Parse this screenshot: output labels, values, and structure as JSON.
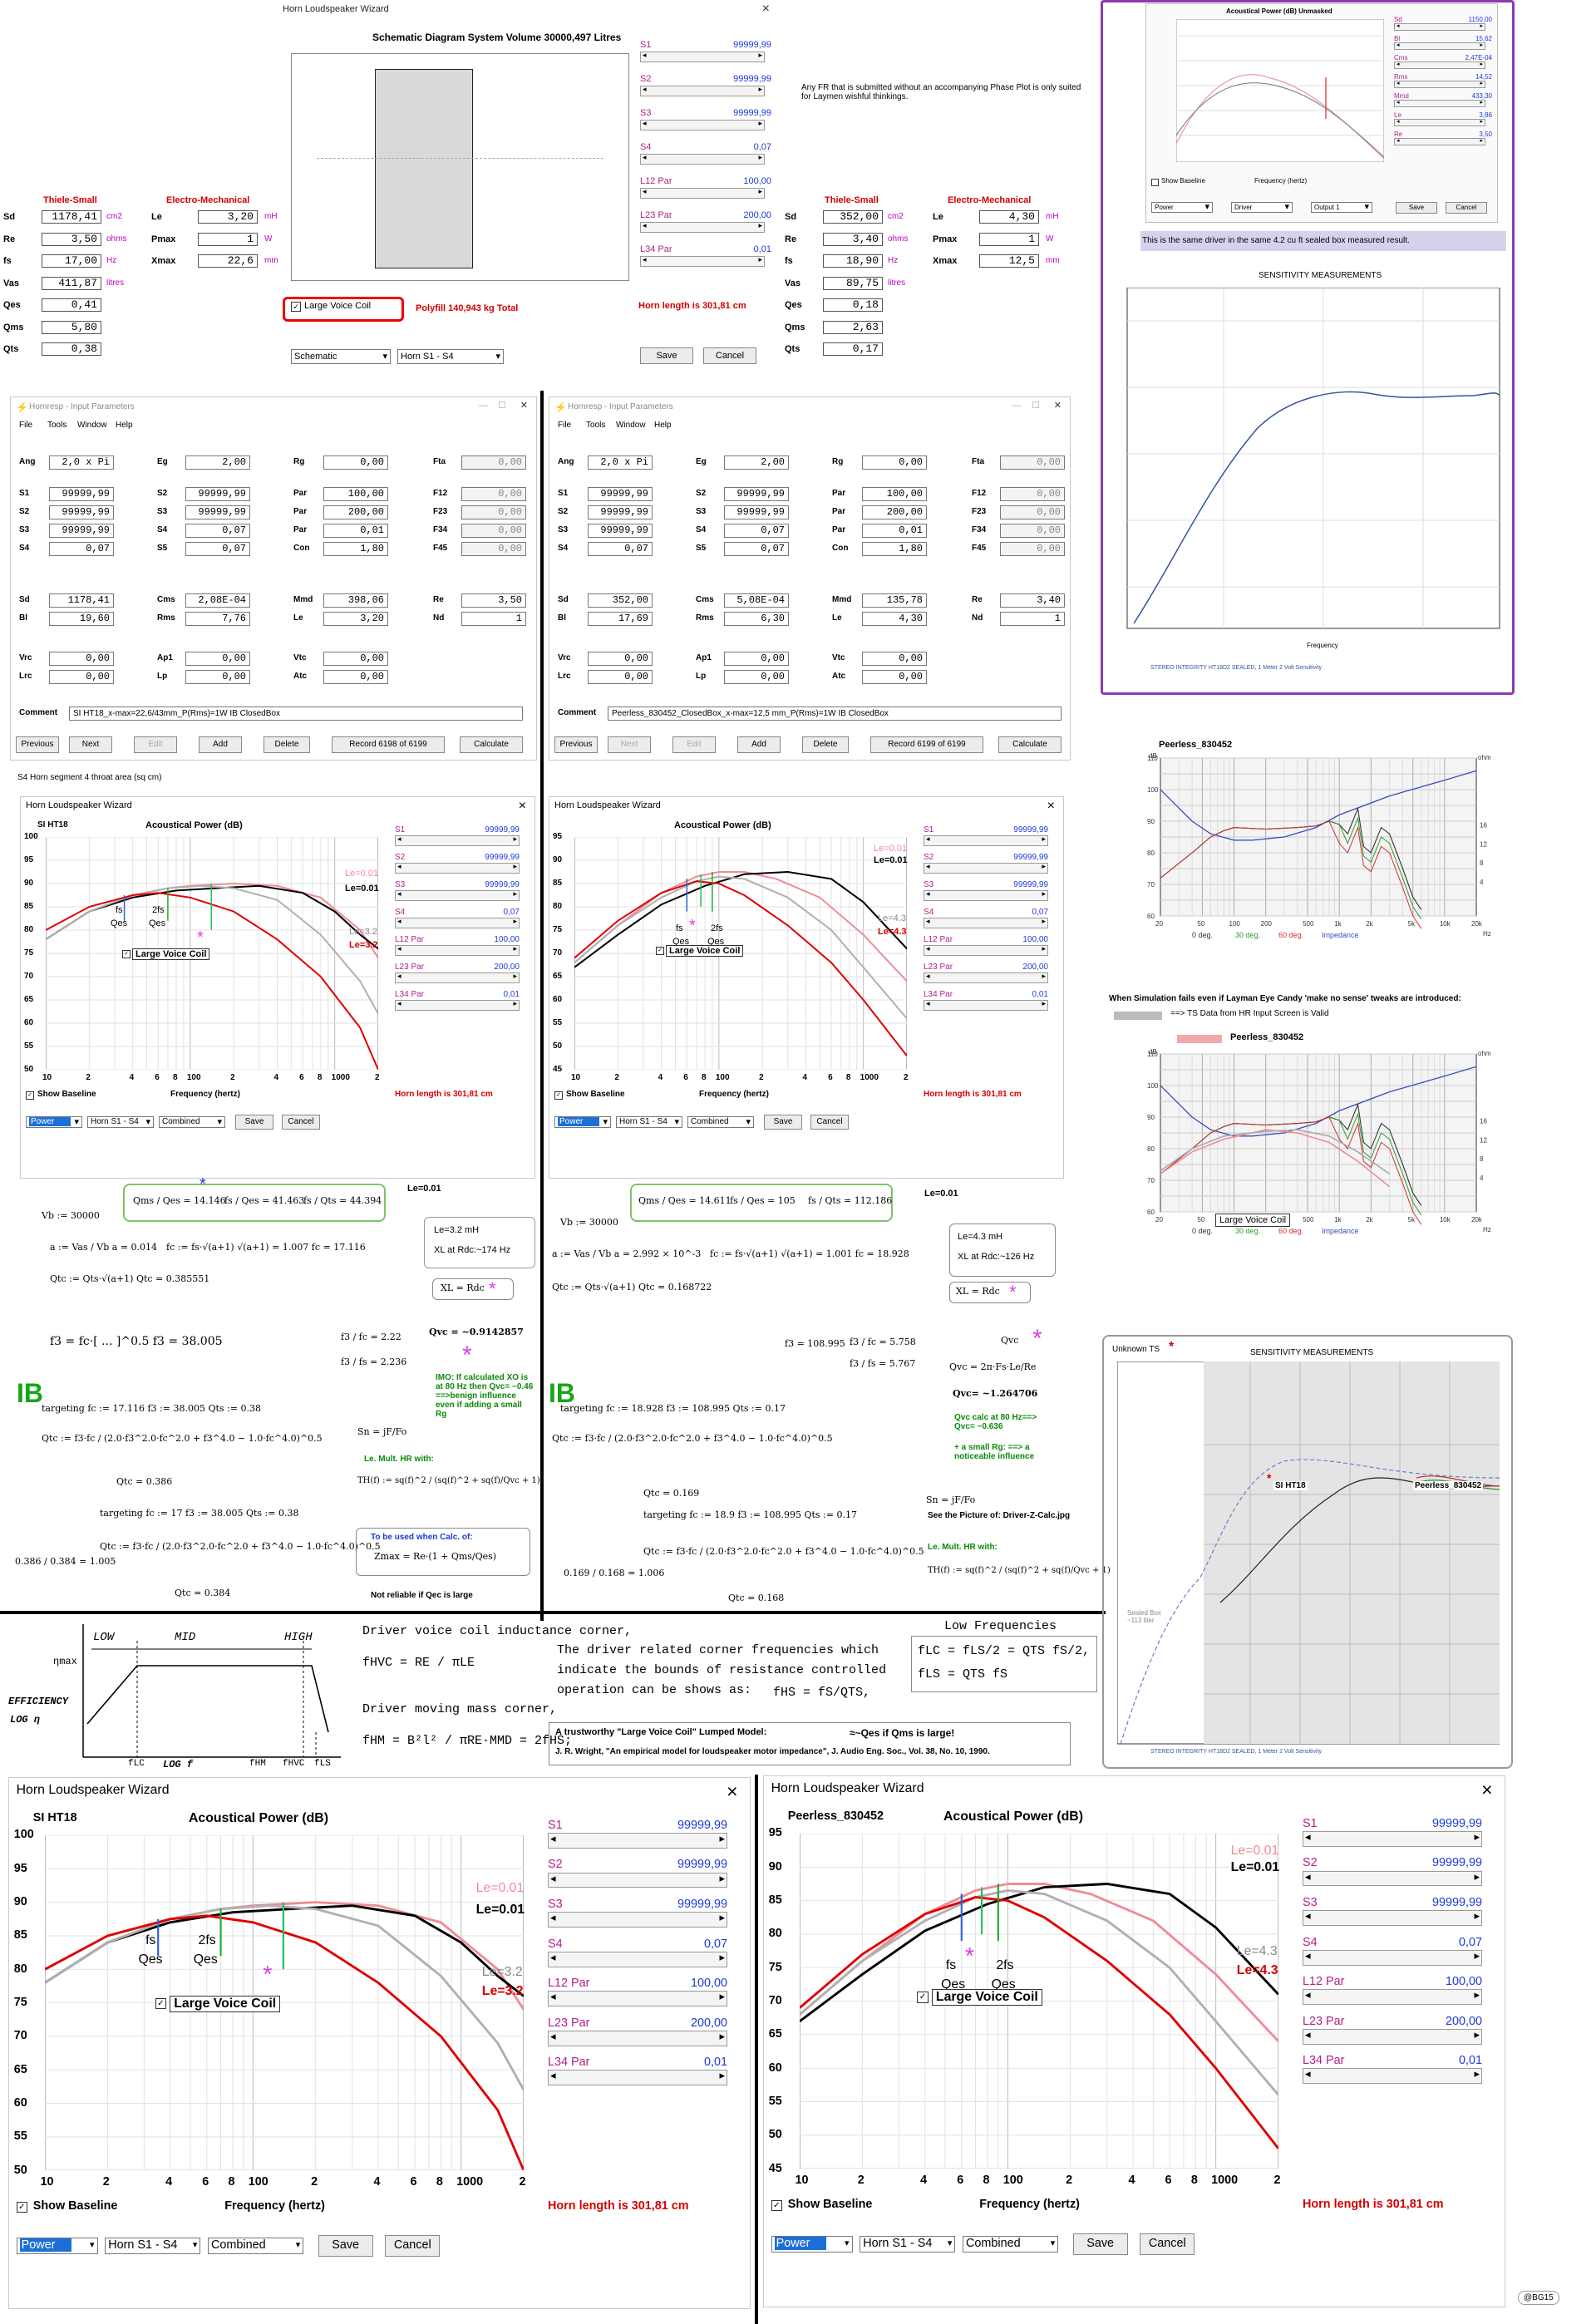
{
  "top_wizard": {
    "title": "Horn Loudspeaker Wizard",
    "schematic_title": "Schematic Diagram   System Volume 30000,497 Litres",
    "sliders": [
      {
        "label": "S1",
        "value": "99999,99"
      },
      {
        "label": "S2",
        "value": "99999,99"
      },
      {
        "label": "S3",
        "value": "99999,99"
      },
      {
        "label": "S4",
        "value": "0,07"
      },
      {
        "label": "L12 Par",
        "value": "100,00"
      },
      {
        "label": "L23 Par",
        "value": "200,00"
      },
      {
        "label": "L34 Par",
        "value": "0,01"
      }
    ],
    "large_voice_coil": "Large Voice Coil",
    "polyfill": "Polyfill   140,943 kg   Total",
    "horn_length": "Horn length is 301,81 cm",
    "combo_left": "Schematic",
    "combo_mid": "Horn S1 - S4",
    "save": "Save",
    "cancel": "Cancel",
    "note": "Any FR that is submitted without an accompanying Phase Plot is only suited for Laymen wishful thinkings."
  },
  "ts_left": {
    "head1": "Thiele-Small",
    "head2": "Electro-Mechanical",
    "rows": [
      {
        "name": "Sd",
        "value": "1178,41",
        "unit": "cm2"
      },
      {
        "name": "Re",
        "value": "3,50",
        "unit": "ohms"
      },
      {
        "name": "fs",
        "value": "17,00",
        "unit": "Hz"
      },
      {
        "name": "Vas",
        "value": "411,87",
        "unit": "litres"
      },
      {
        "name": "Qes",
        "value": "0,41",
        "unit": ""
      },
      {
        "name": "Qms",
        "value": "5,80",
        "unit": ""
      },
      {
        "name": "Qts",
        "value": "0,38",
        "unit": ""
      }
    ],
    "em": [
      {
        "name": "Le",
        "value": "3,20",
        "unit": "mH"
      },
      {
        "name": "Pmax",
        "value": "1",
        "unit": "W"
      },
      {
        "name": "Xmax",
        "value": "22,6",
        "unit": "mm"
      }
    ]
  },
  "ts_right": {
    "head1": "Thiele-Small",
    "head2": "Electro-Mechanical",
    "rows": [
      {
        "name": "Sd",
        "value": "352,00",
        "unit": "cm2"
      },
      {
        "name": "Re",
        "value": "3,40",
        "unit": "ohms"
      },
      {
        "name": "fs",
        "value": "18,90",
        "unit": "Hz"
      },
      {
        "name": "Vas",
        "value": "89,75",
        "unit": "litres"
      },
      {
        "name": "Qes",
        "value": "0,18",
        "unit": ""
      },
      {
        "name": "Qms",
        "value": "2,63",
        "unit": ""
      },
      {
        "name": "Qts",
        "value": "0,17",
        "unit": ""
      }
    ],
    "em": [
      {
        "name": "Le",
        "value": "4,30",
        "unit": "mH"
      },
      {
        "name": "Pmax",
        "value": "1",
        "unit": "W"
      },
      {
        "name": "Xmax",
        "value": "12,5",
        "unit": "mm"
      }
    ]
  },
  "hornresp_left": {
    "title": "Hornresp - Input Parameters",
    "menu": [
      "File",
      "Tools",
      "Window",
      "Help"
    ],
    "rows": [
      [
        [
          "Ang",
          "2,0 x Pi"
        ],
        [
          "Eg",
          "2,00"
        ],
        [
          "Rg",
          "0,00"
        ],
        [
          "Fta",
          "0,00"
        ]
      ],
      [
        [
          "S1",
          "99999,99"
        ],
        [
          "S2",
          "99999,99"
        ],
        [
          "Par",
          "100,00"
        ],
        [
          "F12",
          "0,00"
        ]
      ],
      [
        [
          "S2",
          "99999,99"
        ],
        [
          "S3",
          "99999,99"
        ],
        [
          "Par",
          "200,00"
        ],
        [
          "F23",
          "0,00"
        ]
      ],
      [
        [
          "S3",
          "99999,99"
        ],
        [
          "S4",
          "0,07"
        ],
        [
          "Par",
          "0,01"
        ],
        [
          "F34",
          "0,00"
        ]
      ],
      [
        [
          "S4",
          "0,07"
        ],
        [
          "S5",
          "0,07"
        ],
        [
          "Con",
          "1,80"
        ],
        [
          "F45",
          "0,00"
        ]
      ],
      [
        [
          "Sd",
          "1178,41"
        ],
        [
          "Cms",
          "2,08E-04"
        ],
        [
          "Mmd",
          "398,06"
        ],
        [
          "Re",
          "3,50"
        ]
      ],
      [
        [
          "Bl",
          "19,60"
        ],
        [
          "Rms",
          "7,76"
        ],
        [
          "Le",
          "3,20"
        ],
        [
          "Nd",
          "1"
        ]
      ],
      [
        [
          "Vrc",
          "0,00"
        ],
        [
          "Ap1",
          "0,00"
        ],
        [
          "Vtc",
          "0,00"
        ]
      ],
      [
        [
          "Lrc",
          "0,00"
        ],
        [
          "Lp",
          "0,00"
        ],
        [
          "Atc",
          "0,00"
        ]
      ]
    ],
    "comment_label": "Comment",
    "comment": "SI HT18_x-max=22,6/43mm_P(Rms)=1W          IB  ClosedBox",
    "buttons": [
      "Previous",
      "Next",
      "Edit",
      "Add",
      "Delete",
      "Record 6198 of 6199",
      "Calculate"
    ],
    "status": "S4   Horn segment 4 throat area (sq cm)"
  },
  "hornresp_right": {
    "title": "Hornresp - Input Parameters",
    "menu": [
      "File",
      "Tools",
      "Window",
      "Help"
    ],
    "rows": [
      [
        [
          "Ang",
          "2,0 x Pi"
        ],
        [
          "Eg",
          "2,00"
        ],
        [
          "Rg",
          "0,00"
        ],
        [
          "Fta",
          "0,00"
        ]
      ],
      [
        [
          "S1",
          "99999,99"
        ],
        [
          "S2",
          "99999,99"
        ],
        [
          "Par",
          "100,00"
        ],
        [
          "F12",
          "0,00"
        ]
      ],
      [
        [
          "S2",
          "99999,99"
        ],
        [
          "S3",
          "99999,99"
        ],
        [
          "Par",
          "200,00"
        ],
        [
          "F23",
          "0,00"
        ]
      ],
      [
        [
          "S3",
          "99999,99"
        ],
        [
          "S4",
          "0,07"
        ],
        [
          "Par",
          "0,01"
        ],
        [
          "F34",
          "0,00"
        ]
      ],
      [
        [
          "S4",
          "0,07"
        ],
        [
          "S5",
          "0,07"
        ],
        [
          "Con",
          "1,80"
        ],
        [
          "F45",
          "0,00"
        ]
      ],
      [
        [
          "Sd",
          "352,00"
        ],
        [
          "Cms",
          "5,08E-04"
        ],
        [
          "Mmd",
          "135,78"
        ],
        [
          "Re",
          "3,40"
        ]
      ],
      [
        [
          "Bl",
          "17,69"
        ],
        [
          "Rms",
          "6,30"
        ],
        [
          "Le",
          "4,30"
        ],
        [
          "Nd",
          "1"
        ]
      ],
      [
        [
          "Vrc",
          "0,00"
        ],
        [
          "Ap1",
          "0,00"
        ],
        [
          "Vtc",
          "0,00"
        ]
      ],
      [
        [
          "Lrc",
          "0,00"
        ],
        [
          "Lp",
          "0,00"
        ],
        [
          "Atc",
          "0,00"
        ]
      ]
    ],
    "comment_label": "Comment",
    "comment": "Peerless_830452_ClosedBox_x-max=12,5 mm_P(Rms)=1W     IB  ClosedBox",
    "buttons": [
      "Previous",
      "Next",
      "Edit",
      "Add",
      "Delete",
      "Record 6199 of 6199",
      "Calculate"
    ]
  },
  "wiz_mid_left": {
    "title": "Horn Loudspeaker Wizard",
    "driver": "SI HT18",
    "chart_title": "Acoustical Power (dB)",
    "yticks": [
      "100",
      "95",
      "90",
      "85",
      "80",
      "75",
      "70",
      "65",
      "60",
      "55",
      "50"
    ],
    "xticks": [
      "10",
      "2",
      "4",
      "6",
      "8",
      "100",
      "2",
      "4",
      "6",
      "8",
      "1000",
      "2"
    ],
    "xlabel": "Frequency (hertz)",
    "show_baseline": "Show Baseline",
    "horn_length": "Horn length is 301,81 cm",
    "labels": {
      "le_pink": "Le=0.01",
      "le_black": "Le=0.01",
      "le_gray": "Le=3.2",
      "le_red": "Le=3.2",
      "fs": "fs",
      "qes": "Qes",
      "twofs": "2fs",
      "qes2": "Qes",
      "lvc": "Large Voice Coil"
    },
    "sliders": [
      {
        "label": "S1",
        "value": "99999,99"
      },
      {
        "label": "S2",
        "value": "99999,99"
      },
      {
        "label": "S3",
        "value": "99999,99"
      },
      {
        "label": "S4",
        "value": "0,07"
      },
      {
        "label": "L12 Par",
        "value": "100,00"
      },
      {
        "label": "L23 Par",
        "value": "200,00"
      },
      {
        "label": "L34 Par",
        "value": "0,01"
      }
    ],
    "combo1": "Power",
    "combo2": "Horn S1 - S4",
    "combo3": "Combined",
    "save": "Save",
    "cancel": "Cancel"
  },
  "wiz_mid_right": {
    "title": "Horn Loudspeaker Wizard",
    "driver": "",
    "chart_title": "Acoustical Power (dB)",
    "yticks": [
      "95",
      "90",
      "85",
      "80",
      "75",
      "70",
      "65",
      "60",
      "55",
      "50",
      "45"
    ],
    "xticks": [
      "10",
      "2",
      "4",
      "6",
      "8",
      "100",
      "2",
      "4",
      "6",
      "8",
      "1000",
      "2"
    ],
    "xlabel": "Frequency (hertz)",
    "show_baseline": "Show Baseline",
    "horn_length": "Horn length is 301,81 cm",
    "labels": {
      "le_pink": "Le=0.01",
      "le_black": "Le=0.01",
      "le_gray": "Le=4.3",
      "le_red": "Le=4.3",
      "fs": "fs",
      "qes": "Qes",
      "twofs": "2fs",
      "qes2": "Qes",
      "lvc": "Large Voice Coil"
    },
    "sliders": [
      {
        "label": "S1",
        "value": "99999,99"
      },
      {
        "label": "S2",
        "value": "99999,99"
      },
      {
        "label": "S3",
        "value": "99999,99"
      },
      {
        "label": "S4",
        "value": "0,07"
      },
      {
        "label": "L12 Par",
        "value": "100,00"
      },
      {
        "label": "L23 Par",
        "value": "200,00"
      },
      {
        "label": "L34 Par",
        "value": "0,01"
      }
    ],
    "combo1": "Power",
    "combo2": "Horn S1 - S4",
    "combo3": "Combined",
    "save": "Save",
    "cancel": "Cancel"
  },
  "wiz_bottom_left": {
    "title": "Horn Loudspeaker Wizard",
    "driver": "SI HT18",
    "chart_title": "Acoustical Power (dB)",
    "yticks": [
      "100",
      "95",
      "90",
      "85",
      "80",
      "75",
      "70",
      "65",
      "60",
      "55",
      "50"
    ],
    "xticks": [
      "10",
      "2",
      "4",
      "6",
      "8",
      "100",
      "2",
      "4",
      "6",
      "8",
      "1000",
      "2"
    ],
    "xlabel": "Frequency (hertz)",
    "show_baseline": "Show Baseline",
    "horn_length": "Horn length is 301,81 cm",
    "labels": {
      "le_pink": "Le=0.01",
      "le_black": "Le=0.01",
      "le_gray": "Le=3.2",
      "le_red": "Le=3.2",
      "fs": "fs",
      "qes": "Qes",
      "twofs": "2fs",
      "qes2": "Qes",
      "lvc": "Large Voice Coil"
    },
    "sliders": [
      {
        "label": "S1",
        "value": "99999,99"
      },
      {
        "label": "S2",
        "value": "99999,99"
      },
      {
        "label": "S3",
        "value": "99999,99"
      },
      {
        "label": "S4",
        "value": "0,07"
      },
      {
        "label": "L12 Par",
        "value": "100,00"
      },
      {
        "label": "L23 Par",
        "value": "200,00"
      },
      {
        "label": "L34 Par",
        "value": "0,01"
      }
    ],
    "combo1": "Power",
    "combo2": "Horn S1 - S4",
    "combo3": "Combined",
    "save": "Save",
    "cancel": "Cancel"
  },
  "wiz_bottom_right": {
    "title": "Horn Loudspeaker Wizard",
    "driver": "Peerless_830452",
    "chart_title": "Acoustical Power (dB)",
    "yticks": [
      "95",
      "90",
      "85",
      "80",
      "75",
      "70",
      "65",
      "60",
      "55",
      "50",
      "45"
    ],
    "xticks": [
      "10",
      "2",
      "4",
      "6",
      "8",
      "100",
      "2",
      "4",
      "6",
      "8",
      "1000",
      "2"
    ],
    "xlabel": "Frequency (hertz)",
    "show_baseline": "Show Baseline",
    "horn_length": "Horn length is 301,81 cm",
    "labels": {
      "le_pink": "Le=0.01",
      "le_black": "Le=0.01",
      "le_gray": "Le=4.3",
      "le_red": "Le=4.3",
      "fs": "fs",
      "qes": "Qes",
      "twofs": "2fs",
      "qes2": "Qes",
      "lvc": "Large Voice Coil"
    },
    "sliders": [
      {
        "label": "S1",
        "value": "99999,99"
      },
      {
        "label": "S2",
        "value": "99999,99"
      },
      {
        "label": "S3",
        "value": "99999,99"
      },
      {
        "label": "S4",
        "value": "0,07"
      },
      {
        "label": "L12 Par",
        "value": "100,00"
      },
      {
        "label": "L23 Par",
        "value": "200,00"
      },
      {
        "label": "L34 Par",
        "value": "0,01"
      }
    ],
    "combo1": "Power",
    "combo2": "Horn S1 - S4",
    "combo3": "Combined",
    "save": "Save",
    "cancel": "Cancel"
  },
  "math_left": {
    "ratios": [
      "Qms / Qes = 14.146",
      "fs / Qes = 41.463",
      "fs / Qts = 44.394"
    ],
    "vb": "Vb := 30000",
    "alpha": "a := Vas / Vb    a = 0.014",
    "fc": "fc := fs·√(a+1)    √(a+1) = 1.007    fc = 17.116",
    "qtc": "Qtc := Qts·√(a+1)    Qtc = 0.385551",
    "f3": "f3 = fc·[ ... ]^0.5    f3 = 38.005",
    "f3fc": "f3 / fc = 2.22",
    "f3fs": "f3 / fs = 2.236",
    "le_top": "Le=0.01",
    "le_box": "Le=3.2 mH",
    "xl": "XL at Rdc:~174 Hz",
    "xlrdc": "XL = Rdc",
    "qvc": "Qvc = ~0.9142857",
    "imo": "IMO: If calculated  XO is at 80 Hz then Qvc= ~0.46 ==>benign influence even if adding a small Rg",
    "sn": "Sn = jF/Fo",
    "lemult": "Le. Mult. HR with:",
    "th": "TH(f) := sq(f)^2 / (sq(f)^2 + sq(f)/Qvc + 1)",
    "ib": "IB",
    "targeting1": "targeting    fc := 17.116   f3 := 38.005   Qts := 0.38",
    "qtc1": "Qtc := f3·fc / (2.0·f3^2.0·fc^2.0 + f3^4.0 − 1.0·fc^4.0)^0.5",
    "qtc1v": "Qtc = 0.386",
    "targeting2": "targeting    fc := 17    f3 := 38.005    Qts := 0.38",
    "qtc2v": "Qtc = 0.384",
    "ratio": "0.386 / 0.384 = 1.005",
    "calc_note": "To be used when Calc. of:",
    "zmax": "Zmax = Re·(1 + Qms/Qes)",
    "notreliable": "Not reliable if Qec is large"
  },
  "math_right": {
    "ratios": [
      "Qms / Qes = 14.611",
      "fs / Qes = 105",
      "fs / Qts = 112.186"
    ],
    "vb": "Vb := 30000",
    "alpha": "a := Vas / Vb    a = 2.992 × 10^-3",
    "fc": "fc := fs·√(a+1)    √(a+1) = 1.001    fc = 18.928",
    "qtc": "Qtc := Qts·√(a+1)    Qtc = 0.168722",
    "f3": "f3 = 108.995",
    "f3fc": "f3 / fc = 5.758",
    "f3fs": "f3 / fs = 5.767",
    "le_top": "Le=0.01",
    "le_box": "Le=4.3 mH",
    "xl": "XL at Rdc:~126 Hz",
    "xlrdc": "XL = Rdc",
    "qvc": "Qvc",
    "qvc_eq": "Qvc = 2π·Fs·Le/Re",
    "qvc_val": "Qvc= ~1.264706",
    "qvc80": "Qvc calc at 80 Hz==> Qvc= ~0.636",
    "small_rg": "+ a small Rg: ==> a noticeable influence",
    "sn": "Sn = jF/Fo",
    "seepic": "See the Picture of: Driver-Z-Calc.jpg",
    "lemult": "Le. Mult. HR with:",
    "th": "TH(f) := sq(f)^2 / (sq(f)^2 + sq(f)/Qvc + 1)",
    "ib": "IB",
    "targeting1": "targeting    fc := 18.928   f3 := 108.995   Qts := 0.17",
    "qtc1": "Qtc := f3·fc / (2.0·f3^2.0·fc^2.0 + f3^4.0 − 1.0·fc^4.0)^0.5",
    "qtc1v": "Qtc = 0.169",
    "targeting2": "targeting    fc := 18.9    f3 := 108.995    Qts := 0.17",
    "qtc2v": "Qtc = 0.168",
    "ratio": "0.169 / 0.168 = 1.006"
  },
  "handwritten": {
    "low": "LOW",
    "mid": "MID",
    "high": "HIGH",
    "eta": "ηmax",
    "efficiency": "EFFICIENCY",
    "logeta": "LOG η",
    "flc": "fLC",
    "logf": "LOG f",
    "fhm": "fHM",
    "fhvc": "fHVC",
    "fls": "fLS",
    "dvc": "Driver voice coil inductance corner,",
    "fhvc_eq": "fHVC = RE / πLE",
    "dmm": "Driver moving mass corner,",
    "fhm_eq": "fHM = B²l² / πRE·MMD  = 2fHS;",
    "corner": "The driver related corner frequencies which indicate the bounds of resistance controlled operation can be shows as:",
    "fhs": "fHS = fS/QTS,",
    "lowfreq": "Low Frequencies",
    "flc_eq": "fLC = fLS/2 = QTS fS/2,",
    "fls_eq": "fLS = QTS fS",
    "qesnote": "≈~Qes if Qms is large!",
    "trust": "A trustworthy \"Large Voice Coil\" Lumped Model:",
    "ref": "J. R. Wright, \"An empirical model for loudspeaker motor impedance\", J. Audio Eng. Soc., Vol. 38, No. 10, 1990."
  },
  "right_col": {
    "purple_caption": "This is the same driver in the same 4.2 cu ft sealed box measured result.",
    "mini_title": "Acoustical Power (dB)   Unmasked",
    "mini_show": "Show Baseline",
    "mini_freq": "Frequency (hertz)",
    "mini_combo": [
      "Power",
      "Driver",
      "Output 1"
    ],
    "mini_sliders": [
      {
        "label": "Sd",
        "value": "1150,00"
      },
      {
        "label": "Bl",
        "value": "15,62"
      },
      {
        "label": "Cms",
        "value": "2,47E-04"
      },
      {
        "label": "Rms",
        "value": "14,52"
      },
      {
        "label": "Mmd",
        "value": "433,30"
      },
      {
        "label": "Le",
        "value": "3,86"
      },
      {
        "label": "Re",
        "value": "3,50"
      }
    ],
    "mini_save": "Save",
    "mini_cancel": "Cancel",
    "sens_title": "SENSITIVITY MEASUREMENTS",
    "sens_xlabel": "Frequency",
    "sens_legend": "STEREO INTEGRITY HT18D2 SEALED, 1 Meter 2 Volt Sensitivity",
    "peerless1": "Peerless_830452",
    "fr_legend": [
      "0 deg.",
      "30 deg.",
      "60 deg.",
      "Impedance"
    ],
    "fr_xticks": [
      "20",
      "50",
      "100",
      "200",
      "500",
      "1k",
      "2k",
      "5k",
      "10k",
      "20k"
    ],
    "fr_db": "dB",
    "fr_ohm": "ohm",
    "fr_hz": "Hz",
    "fail_note": "When Simulation fails even if Layman Eye Candy 'make no sense' tweaks are introduced:",
    "gray_note": "==> TS Data from HR Input Screen is Valid",
    "peerless2": "Peerless_830452",
    "lvc": "Large Voice Coil",
    "unknown": "Unknown TS",
    "sens2_title": "SENSITIVITY MEASUREMENTS",
    "si_label": "SI HT18",
    "peerless3": "Peerless_830452",
    "sealed": "Sealed Box ~113 liter",
    "sens2_legend": "STEREO INTEGRITY HT18D2 SEALED, 1 Meter 2 Volt Sensitivity"
  },
  "signature": "@BG15"
}
